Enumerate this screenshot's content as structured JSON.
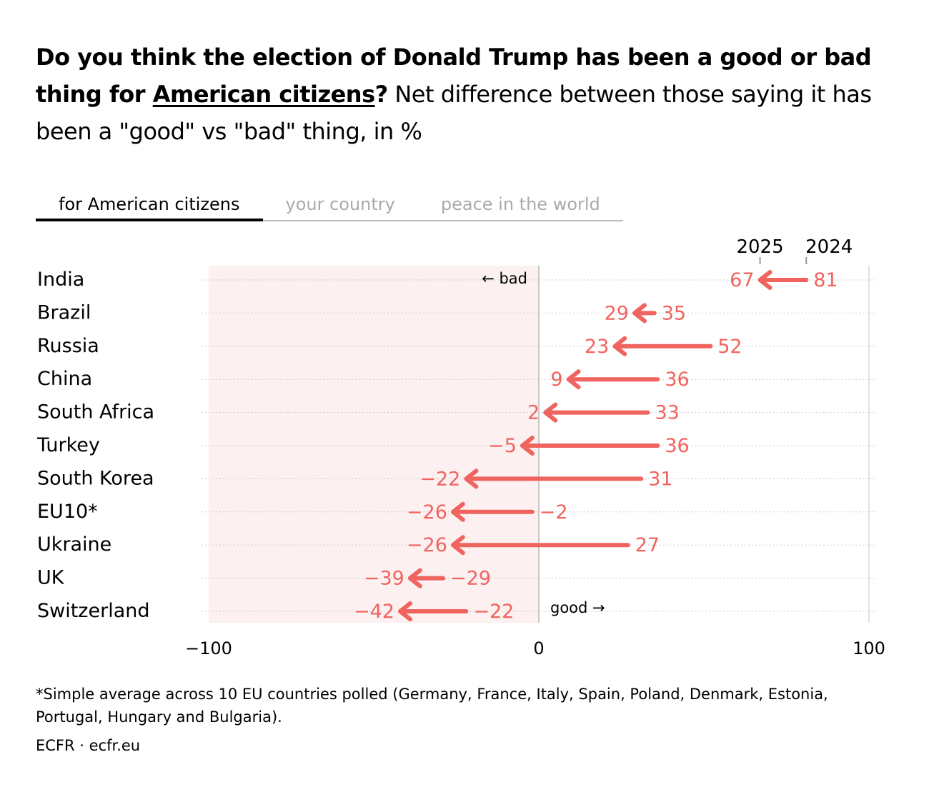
{
  "title": {
    "bold_part1": "Do you think the election of Donald Trump has been a good or bad thing for ",
    "bold_underlined": "American citizens",
    "bold_part2": "?",
    "regular": " Net difference between those saying it has been a \"good\" vs \"bad\" thing, in %"
  },
  "tabs": [
    {
      "label": "for American citizens",
      "active": true
    },
    {
      "label": "your country",
      "active": false
    },
    {
      "label": "peace in the world",
      "active": false
    }
  ],
  "chart_data": {
    "type": "arrow",
    "legend": {
      "from_label": "2024",
      "to_label": "2025"
    },
    "annotations": {
      "bad": "← bad",
      "good": "good →"
    },
    "xlim": [
      -100,
      100
    ],
    "xticks": [
      {
        "value": -100,
        "label": "−100"
      },
      {
        "value": 0,
        "label": "0"
      },
      {
        "value": 100,
        "label": "100"
      }
    ],
    "color": "#f0645f",
    "negative_region_color": "#fcf0f0",
    "categories": [
      "India",
      "Brazil",
      "Russia",
      "China",
      "South Africa",
      "Turkey",
      "South Korea",
      "EU10*",
      "Ukraine",
      "UK",
      "Switzerland"
    ],
    "series": [
      {
        "name": "2024",
        "values": [
          81,
          35,
          52,
          36,
          33,
          36,
          31,
          -2,
          27,
          -29,
          -22
        ]
      },
      {
        "name": "2025",
        "values": [
          67,
          29,
          23,
          9,
          2,
          -5,
          -22,
          -26,
          -26,
          -39,
          -42
        ]
      }
    ]
  },
  "footnote": "*Simple average across 10 EU countries polled (Germany, France, Italy, Spain, Poland, Denmark, Estonia, Portugal, Hungary and Bulgaria).",
  "source": "ECFR · ecfr.eu"
}
